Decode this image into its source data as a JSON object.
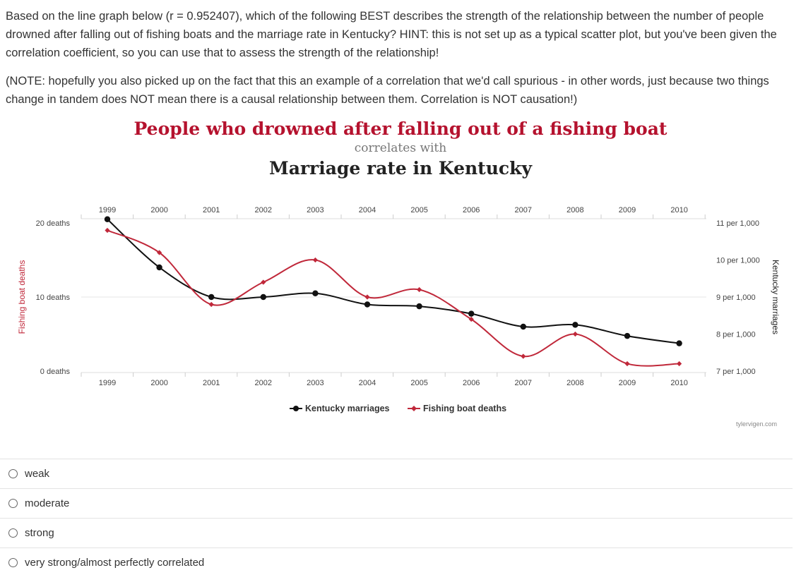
{
  "question": {
    "paragraph1": "Based on the line graph below (r = 0.952407), which of the following BEST describes the strength of the relationship between the number of people drowned after falling out of fishing boats and the marriage rate in Kentucky? HINT: this is not set up as a typical scatter plot, but you've been given the correlation coefficient, so you can use that to assess the strength of the relationship!",
    "paragraph2": "(NOTE: hopefully you also picked up on the fact that this an example of a correlation that we'd call spurious - in other words, just because two things change in tandem does NOT mean there is a causal relationship between them. Correlation is NOT causation!)"
  },
  "chart_header": {
    "title": "People who drowned after falling out of a fishing boat",
    "subtitle": "correlates with",
    "title2": "Marriage rate in Kentucky"
  },
  "chart_data": {
    "type": "line",
    "x": [
      "1999",
      "2000",
      "2001",
      "2002",
      "2003",
      "2004",
      "2005",
      "2006",
      "2007",
      "2008",
      "2009",
      "2010"
    ],
    "series": [
      {
        "name": "Kentucky marriages",
        "axis": "right",
        "color": "#111111",
        "values": [
          11.1,
          9.8,
          9.0,
          9.0,
          9.1,
          8.8,
          8.75,
          8.55,
          8.2,
          8.25,
          7.95,
          7.75
        ]
      },
      {
        "name": "Fishing boat deaths",
        "axis": "left",
        "color": "#c0283a",
        "values": [
          19,
          16,
          9,
          12,
          15,
          10,
          11,
          7,
          2,
          5,
          1,
          1
        ]
      }
    ],
    "ylabel": "Fishing boat deaths",
    "y2label": "Kentucky marriages",
    "ylim": [
      0,
      20
    ],
    "y2lim": [
      7,
      11
    ],
    "yticks": [
      {
        "v": 20,
        "label": "20 deaths"
      },
      {
        "v": 10,
        "label": "10 deaths"
      },
      {
        "v": 0,
        "label": "0 deaths"
      }
    ],
    "y2ticks": [
      {
        "v": 11,
        "label": "11 per 1,000"
      },
      {
        "v": 10,
        "label": "10 per 1,000"
      },
      {
        "v": 9,
        "label": "9 per 1,000"
      },
      {
        "v": 8,
        "label": "8 per 1,000"
      },
      {
        "v": 7,
        "label": "7 per 1,000"
      }
    ],
    "gridline_at": 10,
    "credit": "tylervigen.com"
  },
  "options": [
    {
      "label": "weak"
    },
    {
      "label": "moderate"
    },
    {
      "label": "strong"
    },
    {
      "label": "very strong/almost perfectly correlated"
    }
  ]
}
